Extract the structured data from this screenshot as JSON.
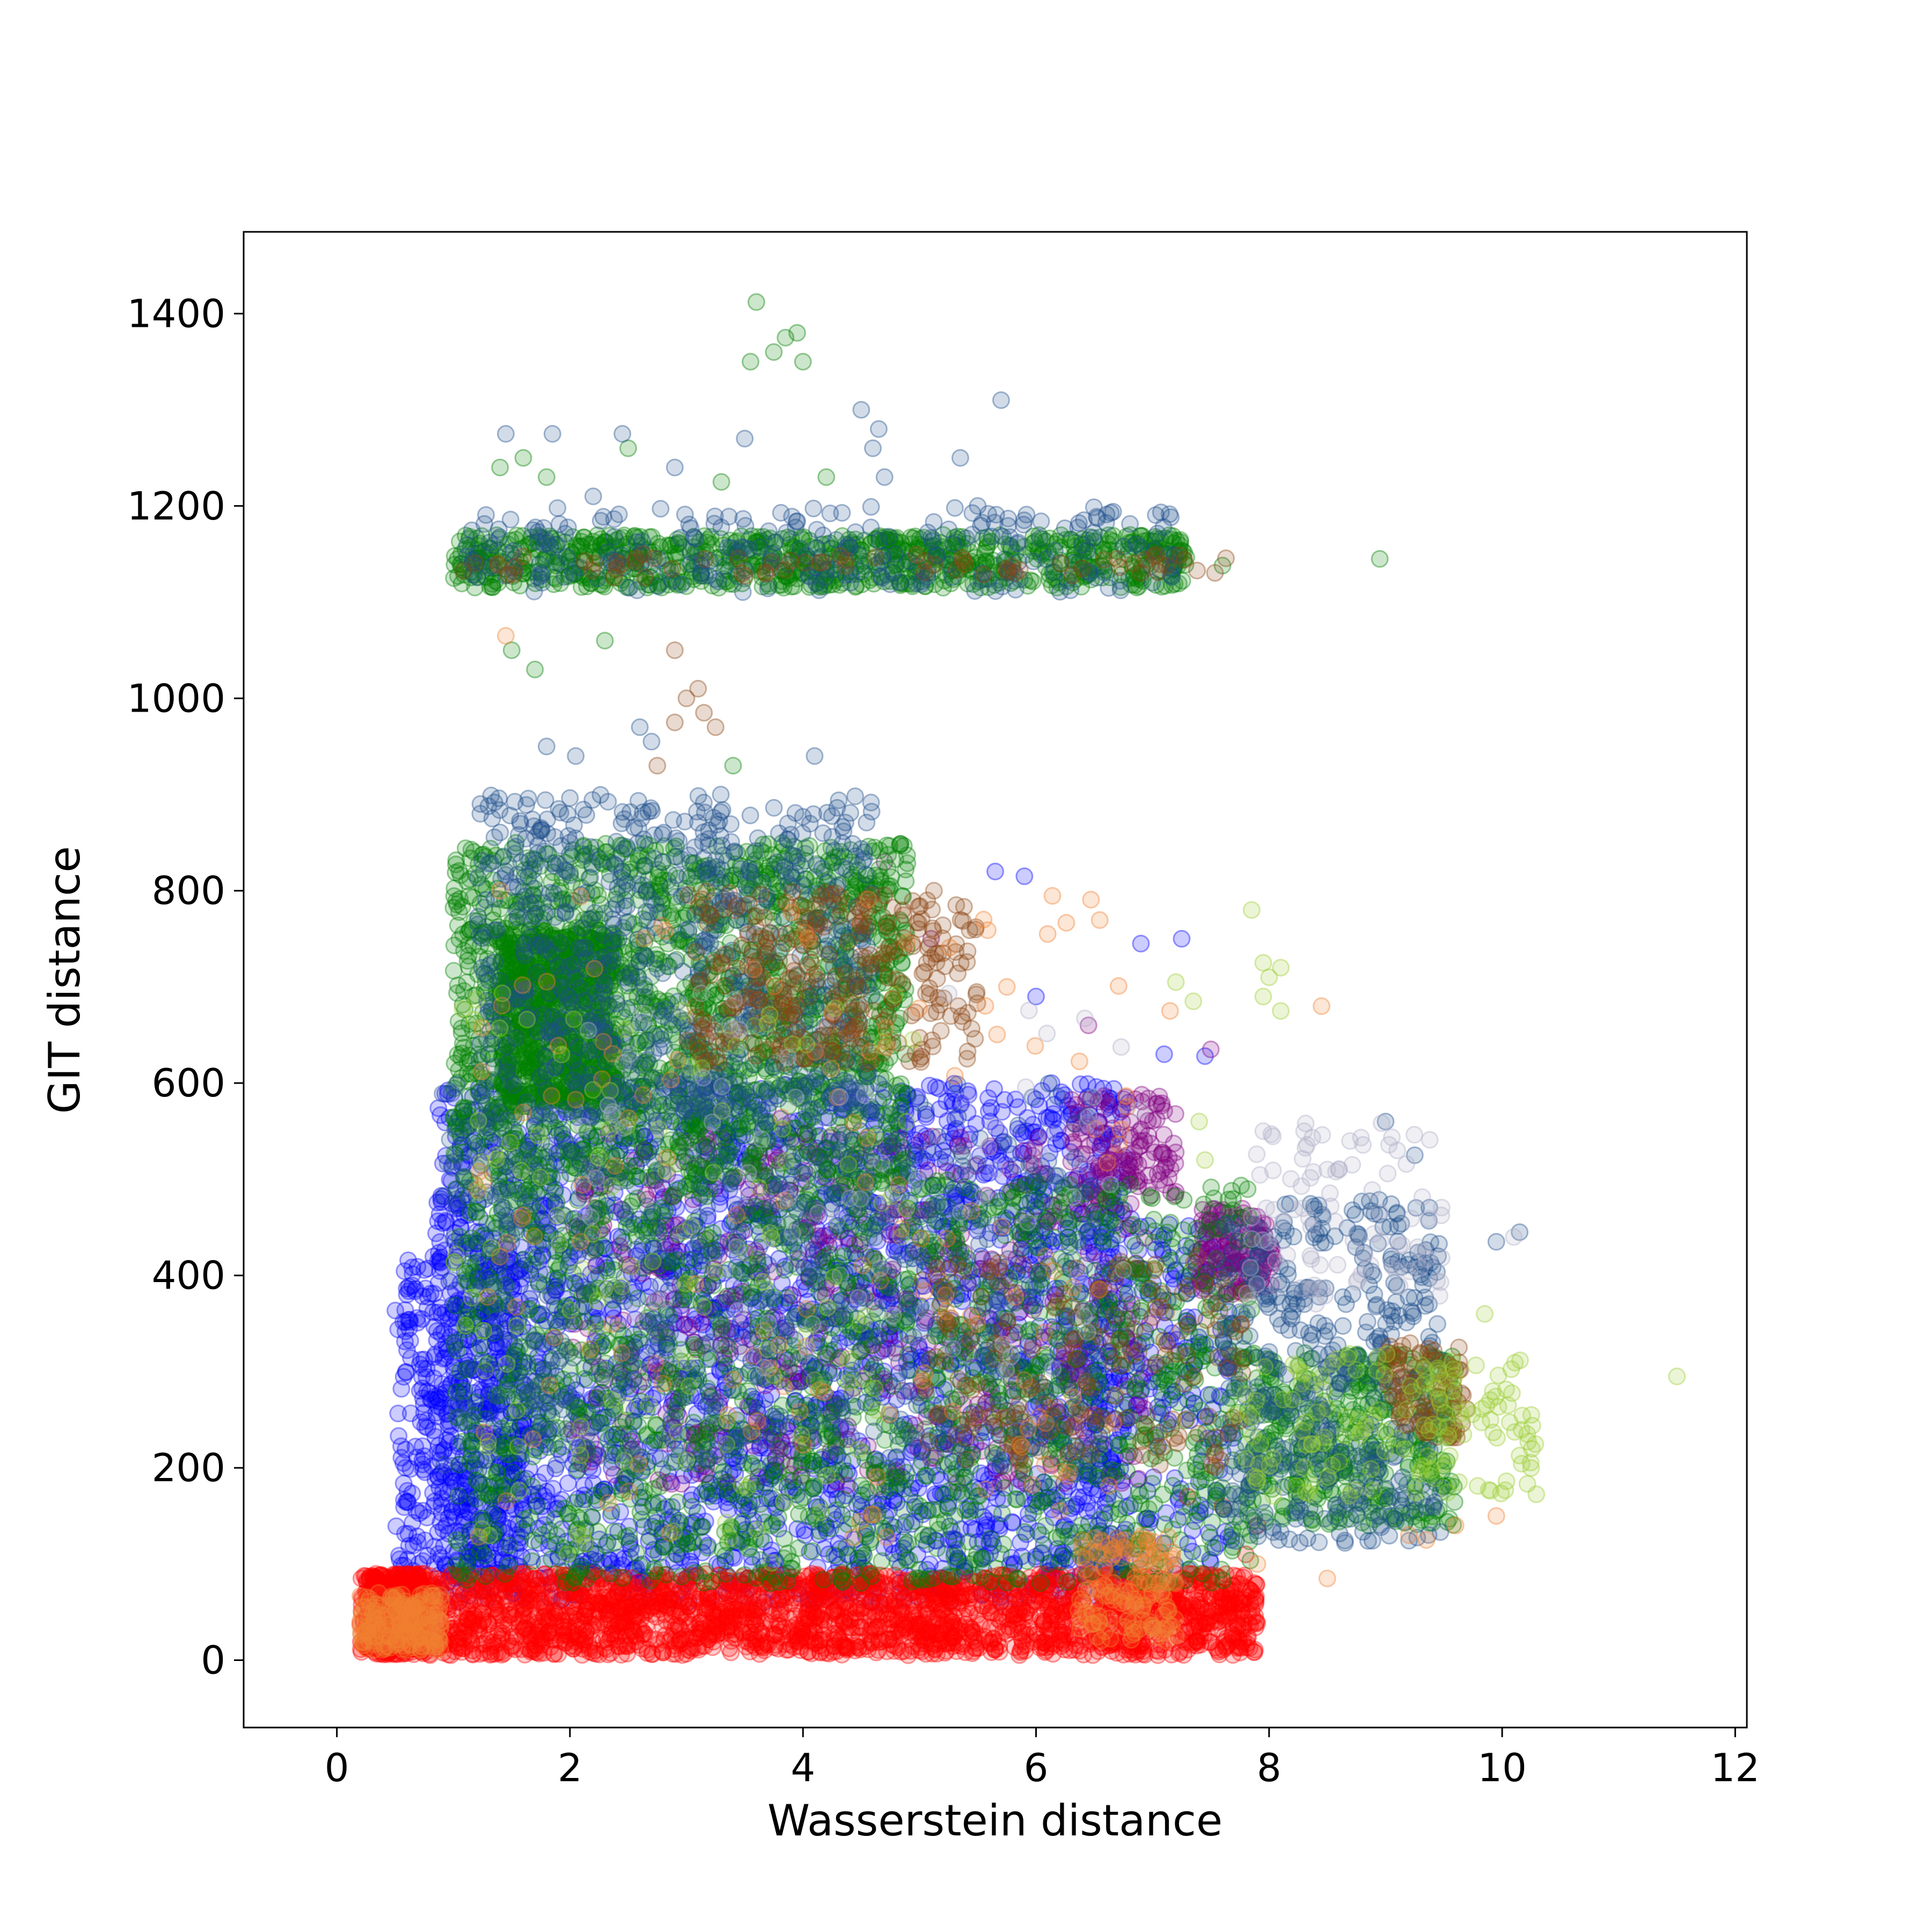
{
  "chart_data": {
    "type": "scatter",
    "title": "",
    "xlabel": "Wasserstein distance",
    "ylabel": "GIT distance",
    "xlim": [
      -0.8,
      12.1
    ],
    "ylim": [
      -70,
      1485
    ],
    "xticks": [
      0,
      2,
      4,
      6,
      8,
      10,
      12
    ],
    "yticks": [
      0,
      200,
      400,
      600,
      800,
      1000,
      1200,
      1400
    ],
    "grid": false,
    "legend": "none",
    "marker_opacity": 0.2,
    "series": [
      {
        "color": "#0000ff",
        "clusters": [
          {
            "x": [
              0.85,
              6.8
            ],
            "y": [
              60,
              600
            ],
            "n": 2600
          },
          {
            "x": [
              0.5,
              1.6
            ],
            "y": [
              90,
              420
            ],
            "n": 420
          },
          {
            "x": [
              6.4,
              7.7
            ],
            "y": [
              90,
              460
            ],
            "n": 260
          }
        ],
        "points": [
          [
            5.65,
            820
          ],
          [
            5.9,
            815
          ],
          [
            6.9,
            745
          ],
          [
            7.25,
            750
          ],
          [
            6.0,
            690
          ],
          [
            7.1,
            630
          ],
          [
            7.45,
            628
          ]
        ]
      },
      {
        "color": "#ff0000",
        "clusters": [
          {
            "x": [
              0.2,
              7.9
            ],
            "y": [
              5,
              90
            ],
            "n": 2400
          },
          {
            "x": [
              0.25,
              0.75
            ],
            "y": [
              5,
              90
            ],
            "n": 350
          }
        ],
        "points": [
          [
            7.3,
            170
          ],
          [
            7.6,
            160
          ],
          [
            7.9,
            140
          ],
          [
            7.2,
            75
          ],
          [
            7.8,
            110
          ]
        ]
      },
      {
        "color": "#800080",
        "clusters": [
          {
            "x": [
              6.3,
              7.2
            ],
            "y": [
              480,
              590
            ],
            "n": 120
          },
          {
            "x": [
              7.4,
              8.05
            ],
            "y": [
              380,
              470
            ],
            "n": 150
          },
          {
            "x": [
              2.0,
              7.0
            ],
            "y": [
              180,
              550
            ],
            "n": 500
          }
        ],
        "points": [
          [
            4.7,
            830
          ],
          [
            5.1,
            750
          ],
          [
            6.45,
            660
          ],
          [
            7.5,
            635
          ]
        ]
      },
      {
        "color": "#008000",
        "clusters": [
          {
            "x": [
              1.0,
              4.9
            ],
            "y": [
              500,
              850
            ],
            "n": 1700
          },
          {
            "x": [
              1.4,
              2.4
            ],
            "y": [
              580,
              760
            ],
            "n": 700
          },
          {
            "x": [
              1.0,
              7.9
            ],
            "y": [
              80,
              500
            ],
            "n": 1800
          },
          {
            "x": [
              7.8,
              9.6
            ],
            "y": [
              140,
              320
            ],
            "n": 420
          },
          {
            "x": [
              1.0,
              7.3
            ],
            "y": [
              1115,
              1170
            ],
            "n": 850
          }
        ],
        "points": [
          [
            3.6,
            1412
          ],
          [
            3.85,
            1375
          ],
          [
            3.75,
            1360
          ],
          [
            3.95,
            1380
          ],
          [
            4.0,
            1350
          ],
          [
            3.55,
            1350
          ],
          [
            1.4,
            1240
          ],
          [
            1.6,
            1250
          ],
          [
            1.8,
            1230
          ],
          [
            2.5,
            1260
          ],
          [
            3.3,
            1225
          ],
          [
            4.2,
            1230
          ],
          [
            8.95,
            1145
          ],
          [
            7.6,
            1138
          ],
          [
            2.3,
            1060
          ],
          [
            1.5,
            1050
          ],
          [
            1.7,
            1030
          ],
          [
            3.4,
            930
          ]
        ]
      },
      {
        "color": "#1f4e8c",
        "clusters": [
          {
            "x": [
              1.2,
              4.6
            ],
            "y": [
              560,
              900
            ],
            "n": 700
          },
          {
            "x": [
              7.6,
              9.5
            ],
            "y": [
              120,
              480
            ],
            "n": 450
          },
          {
            "x": [
              1.1,
              7.2
            ],
            "y": [
              1110,
              1200
            ],
            "n": 260
          },
          {
            "x": [
              0.9,
              6.5
            ],
            "y": [
              200,
              600
            ],
            "n": 500
          }
        ],
        "points": [
          [
            5.7,
            1310
          ],
          [
            4.5,
            1300
          ],
          [
            4.65,
            1280
          ],
          [
            4.6,
            1260
          ],
          [
            3.5,
            1270
          ],
          [
            1.45,
            1275
          ],
          [
            1.85,
            1275
          ],
          [
            2.45,
            1275
          ],
          [
            5.35,
            1250
          ],
          [
            2.2,
            1210
          ],
          [
            4.7,
            1230
          ],
          [
            5.5,
            1200
          ],
          [
            2.9,
            1240
          ],
          [
            2.6,
            970
          ],
          [
            1.8,
            950
          ],
          [
            2.7,
            955
          ],
          [
            2.05,
            940
          ],
          [
            4.1,
            940
          ],
          [
            9.0,
            560
          ],
          [
            9.25,
            525
          ],
          [
            9.05,
            420
          ],
          [
            9.45,
            420
          ],
          [
            10.15,
            445
          ],
          [
            9.95,
            435
          ]
        ]
      },
      {
        "color": "#8b4513",
        "clusters": [
          {
            "x": [
              3.0,
              5.5
            ],
            "y": [
              620,
              800
            ],
            "n": 300
          },
          {
            "x": [
              5.0,
              7.8
            ],
            "y": [
              200,
              420
            ],
            "n": 180
          },
          {
            "x": [
              9.0,
              9.7
            ],
            "y": [
              230,
              330
            ],
            "n": 90
          },
          {
            "x": [
              1.0,
              7.7
            ],
            "y": [
              1125,
              1150
            ],
            "n": 70
          }
        ],
        "points": [
          [
            2.9,
            1050
          ],
          [
            3.1,
            1010
          ],
          [
            3.0,
            1000
          ],
          [
            2.9,
            975
          ],
          [
            3.15,
            985
          ],
          [
            3.25,
            970
          ],
          [
            2.75,
            930
          ],
          [
            5.1,
            730
          ],
          [
            5.2,
            735
          ]
        ]
      },
      {
        "color": "#f08030",
        "clusters": [
          {
            "x": [
              0.2,
              0.9
            ],
            "y": [
              10,
              70
            ],
            "n": 200
          },
          {
            "x": [
              6.35,
              7.2
            ],
            "y": [
              20,
              130
            ],
            "n": 140
          },
          {
            "x": [
              1.2,
              6.8
            ],
            "y": [
              120,
              800
            ],
            "n": 150
          }
        ],
        "points": [
          [
            1.4,
            800
          ],
          [
            1.45,
            1065
          ],
          [
            7.15,
            675
          ],
          [
            8.45,
            680
          ],
          [
            9.2,
            130
          ],
          [
            9.35,
            125
          ],
          [
            9.6,
            140
          ],
          [
            9.95,
            150
          ],
          [
            8.5,
            85
          ],
          [
            7.9,
            100
          ],
          [
            5.55,
            770
          ],
          [
            6.1,
            755
          ],
          [
            5.75,
            700
          ]
        ]
      },
      {
        "color": "#9acd32",
        "clusters": [
          {
            "x": [
              7.7,
              10.3
            ],
            "y": [
              170,
              320
            ],
            "n": 150
          },
          {
            "x": [
              1.0,
              5.0
            ],
            "y": [
              100,
              700
            ],
            "n": 130
          }
        ],
        "points": [
          [
            7.85,
            780
          ],
          [
            7.95,
            725
          ],
          [
            8.1,
            720
          ],
          [
            8.0,
            710
          ],
          [
            7.95,
            690
          ],
          [
            8.1,
            675
          ],
          [
            7.2,
            705
          ],
          [
            7.35,
            685
          ],
          [
            7.4,
            560
          ],
          [
            7.45,
            520
          ],
          [
            11.5,
            295
          ],
          [
            10.25,
            255
          ],
          [
            10.05,
            265
          ],
          [
            9.85,
            360
          ],
          [
            9.9,
            250
          ]
        ]
      },
      {
        "color": "#b0b0c8",
        "clusters": [
          {
            "x": [
              7.8,
              9.5
            ],
            "y": [
              370,
              560
            ],
            "n": 90
          },
          {
            "x": [
              2.0,
              7.0
            ],
            "y": [
              300,
              700
            ],
            "n": 80
          }
        ],
        "points": [
          [
            8.3,
            550
          ],
          [
            7.95,
            550
          ],
          [
            8.6,
            510
          ],
          [
            9.1,
            530
          ],
          [
            10.1,
            440
          ]
        ]
      }
    ]
  }
}
